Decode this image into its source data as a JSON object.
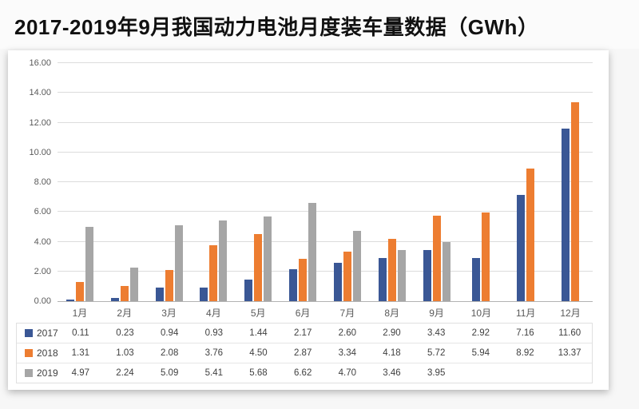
{
  "page": {
    "title": "2017-2019年9月我国动力电池月度装车量数据（GWh）"
  },
  "chart_data": {
    "type": "bar",
    "title": "2017-2019年9月我国动力电池月度装车量数据（GWh）",
    "categories": [
      "1月",
      "2月",
      "3月",
      "4月",
      "5月",
      "6月",
      "7月",
      "8月",
      "9月",
      "10月",
      "11月",
      "12月"
    ],
    "series": [
      {
        "name": "2017",
        "color": "#3a5795",
        "values": [
          0.11,
          0.23,
          0.94,
          0.93,
          1.44,
          2.17,
          2.6,
          2.9,
          3.43,
          2.92,
          7.16,
          11.6
        ]
      },
      {
        "name": "2018",
        "color": "#ed7d31",
        "values": [
          1.31,
          1.03,
          2.08,
          3.76,
          4.5,
          2.87,
          3.34,
          4.18,
          5.72,
          5.94,
          8.92,
          13.37
        ]
      },
      {
        "name": "2019",
        "color": "#a6a6a6",
        "values": [
          4.97,
          2.24,
          5.09,
          5.41,
          5.68,
          6.62,
          4.7,
          3.46,
          3.95,
          null,
          null,
          null
        ]
      }
    ],
    "xlabel": "",
    "ylabel": "",
    "ylim": [
      0,
      16
    ],
    "ytick_step": 2,
    "ytick_labels": [
      "0.00",
      "2.00",
      "4.00",
      "6.00",
      "8.00",
      "10.00",
      "12.00",
      "14.00",
      "16.00"
    ],
    "grid": true,
    "legend_position": "data-table-left",
    "value_format_decimals": 2
  }
}
